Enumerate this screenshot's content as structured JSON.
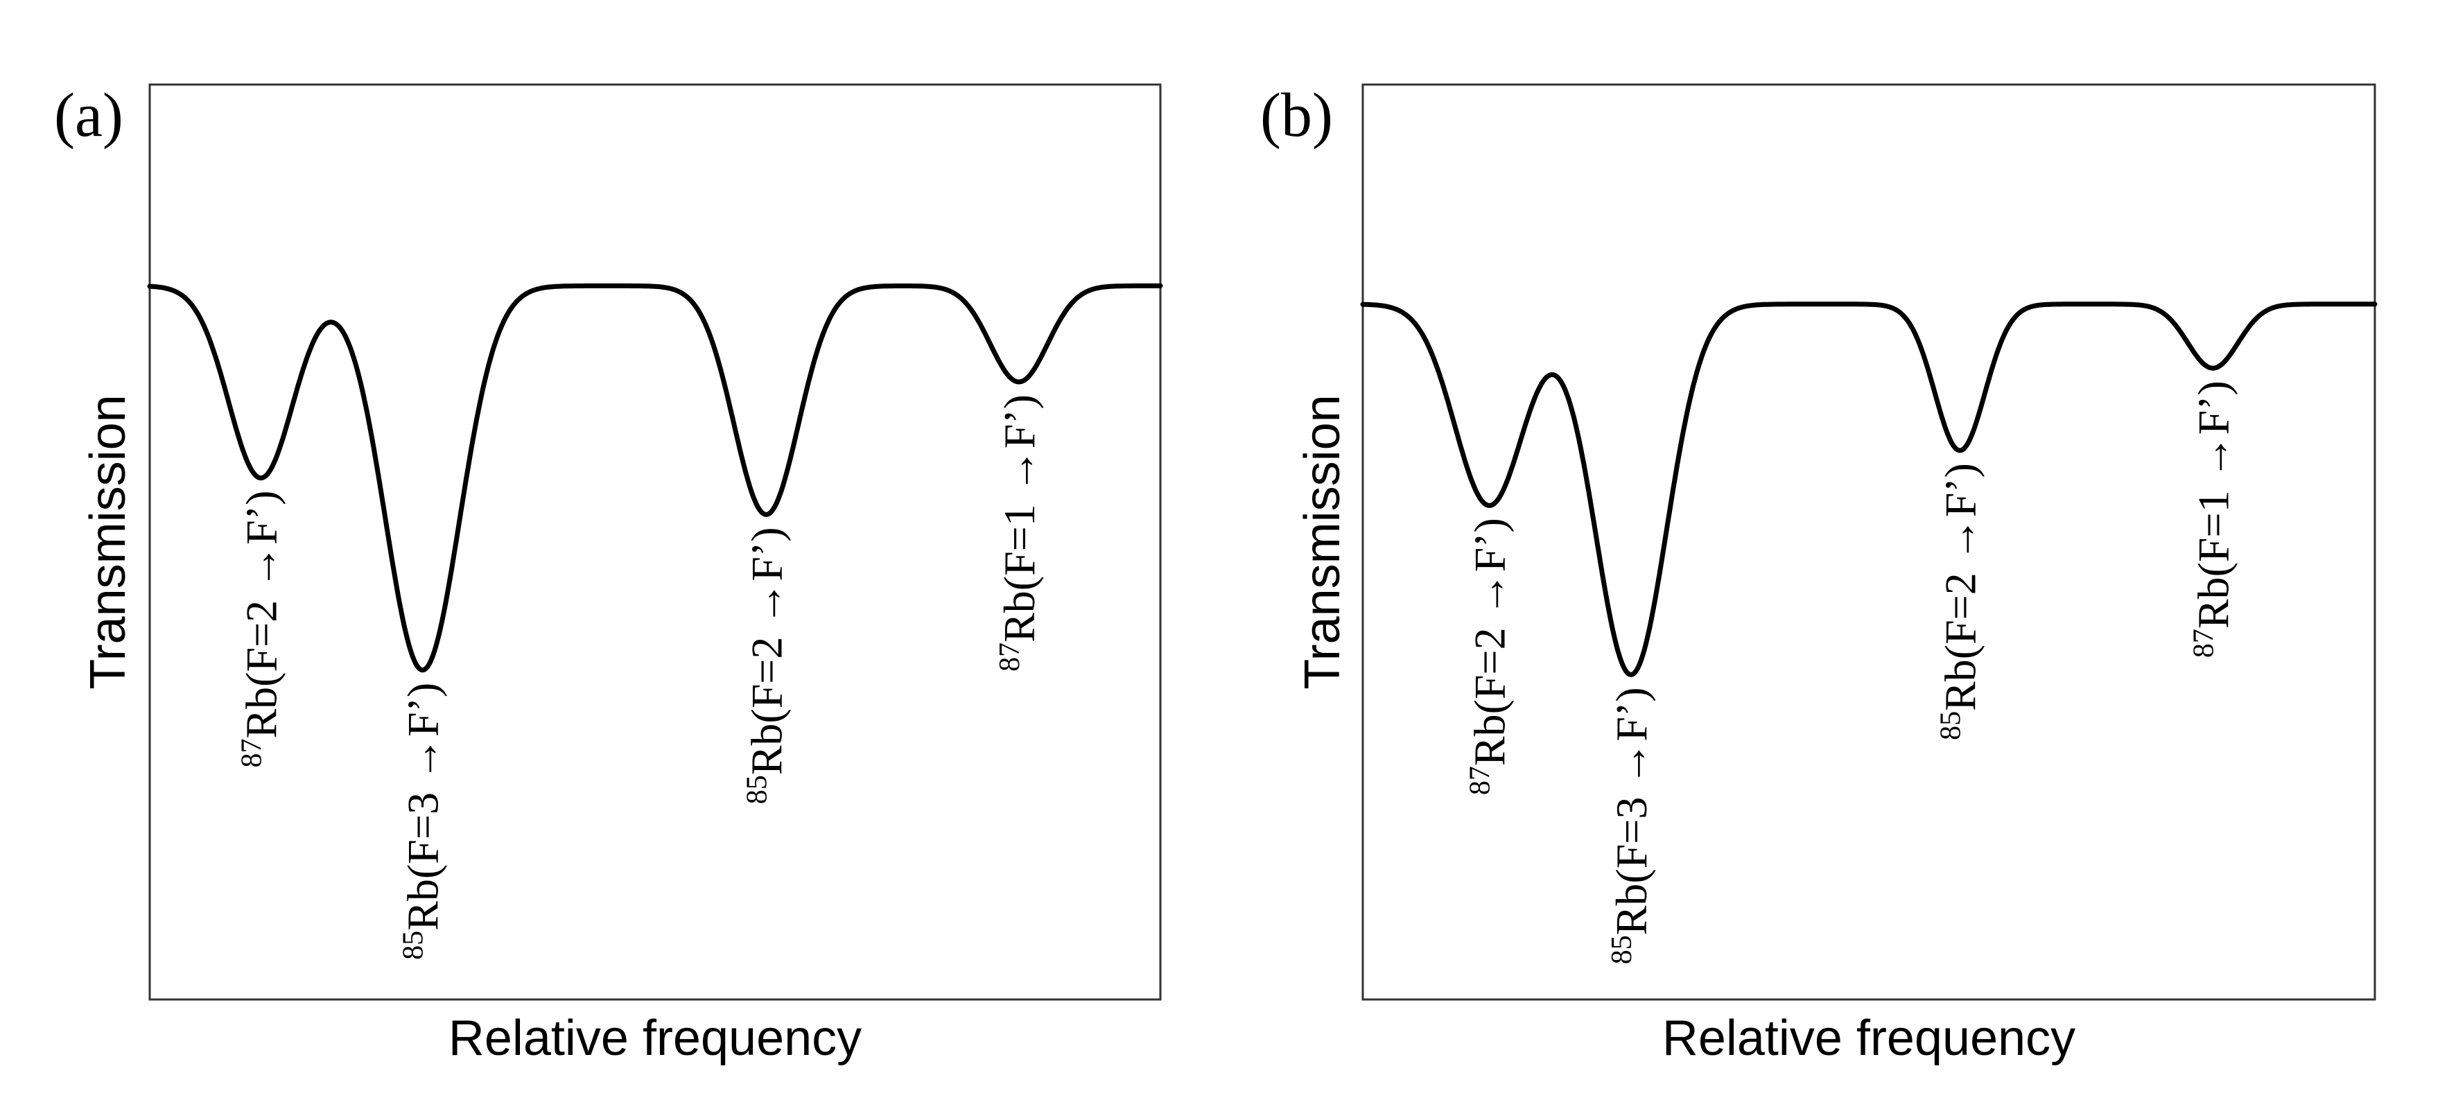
{
  "chart_data": [
    {
      "type": "line",
      "panel_label": "(a)",
      "xlabel": "Relative frequency",
      "ylabel": "Transmission",
      "xlim": [
        0,
        1
      ],
      "ylim": [
        0,
        1
      ],
      "grid": false,
      "series_color": "#222222",
      "baseline": 0.78,
      "dips": [
        {
          "x": 0.11,
          "min": 0.57,
          "width": 0.045,
          "label_iso": "87",
          "label_text": "Rb(F=2 →F’)"
        },
        {
          "x": 0.27,
          "min": 0.36,
          "width": 0.052,
          "label_iso": "85",
          "label_text": "Rb(F=3 →F’)"
        },
        {
          "x": 0.61,
          "min": 0.53,
          "width": 0.045,
          "label_iso": "85",
          "label_text": "Rb(F=2 →F’)"
        },
        {
          "x": 0.86,
          "min": 0.675,
          "width": 0.04,
          "label_iso": "87",
          "label_text": "Rb(F=1 →F’)"
        }
      ]
    },
    {
      "type": "line",
      "panel_label": "(b)",
      "xlabel": "Relative frequency",
      "ylabel": "Transmission",
      "xlim": [
        0,
        1
      ],
      "ylim": [
        0,
        1
      ],
      "grid": false,
      "series_color": "#000000",
      "baseline": 0.76,
      "dips": [
        {
          "x": 0.125,
          "min": 0.54,
          "width": 0.048,
          "label_iso": "87",
          "label_text": "Rb(F=2 →F’)"
        },
        {
          "x": 0.265,
          "min": 0.355,
          "width": 0.05,
          "label_iso": "85",
          "label_text": "Rb(F=3 →F’)"
        },
        {
          "x": 0.59,
          "min": 0.6,
          "width": 0.035,
          "label_iso": "85",
          "label_text": "Rb(F=2 →F’)"
        },
        {
          "x": 0.84,
          "min": 0.69,
          "width": 0.035,
          "label_iso": "87",
          "label_text": "Rb(F=1 →F’)"
        }
      ]
    }
  ]
}
